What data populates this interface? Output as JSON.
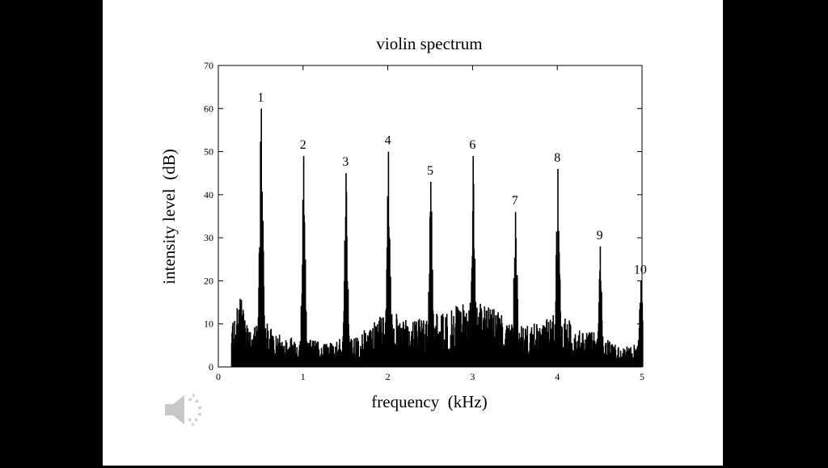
{
  "slide": {
    "background": "#ffffff",
    "letterbox_color": "#000000"
  },
  "audio": {
    "icon": "speaker-icon"
  },
  "chart_data": {
    "type": "bar",
    "title": "violin spectrum",
    "xlabel": "frequency  (kHz)",
    "ylabel": "intensity level  (dB)",
    "xlim": [
      0,
      5
    ],
    "ylim": [
      0,
      70
    ],
    "xticks": [
      0,
      1,
      2,
      3,
      4,
      5
    ],
    "yticks": [
      0,
      10,
      20,
      30,
      40,
      50,
      60,
      70
    ],
    "grid": false,
    "bar_color": "#000000",
    "peaks": [
      {
        "label": "1",
        "x": 0.5,
        "y": 60
      },
      {
        "label": "2",
        "x": 1.0,
        "y": 49
      },
      {
        "label": "3",
        "x": 1.5,
        "y": 45
      },
      {
        "label": "4",
        "x": 2.0,
        "y": 50
      },
      {
        "label": "5",
        "x": 2.5,
        "y": 43
      },
      {
        "label": "6",
        "x": 3.0,
        "y": 49
      },
      {
        "label": "7",
        "x": 3.5,
        "y": 36
      },
      {
        "label": "8",
        "x": 4.0,
        "y": 46
      },
      {
        "label": "9",
        "x": 4.5,
        "y": 28
      },
      {
        "label": "10",
        "x": 4.98,
        "y": 20
      }
    ],
    "noise_floor": [
      [
        0.15,
        8
      ],
      [
        0.25,
        15
      ],
      [
        0.35,
        9
      ],
      [
        0.5,
        10
      ],
      [
        0.75,
        6
      ],
      [
        1.0,
        6
      ],
      [
        1.25,
        5
      ],
      [
        1.5,
        6
      ],
      [
        1.75,
        8
      ],
      [
        2.0,
        12
      ],
      [
        2.25,
        9
      ],
      [
        2.5,
        11
      ],
      [
        2.75,
        12
      ],
      [
        3.0,
        14
      ],
      [
        3.25,
        12
      ],
      [
        3.5,
        8
      ],
      [
        3.75,
        9
      ],
      [
        4.0,
        11
      ],
      [
        4.25,
        8
      ],
      [
        4.5,
        7
      ],
      [
        4.75,
        4
      ],
      [
        5.0,
        5
      ]
    ]
  }
}
